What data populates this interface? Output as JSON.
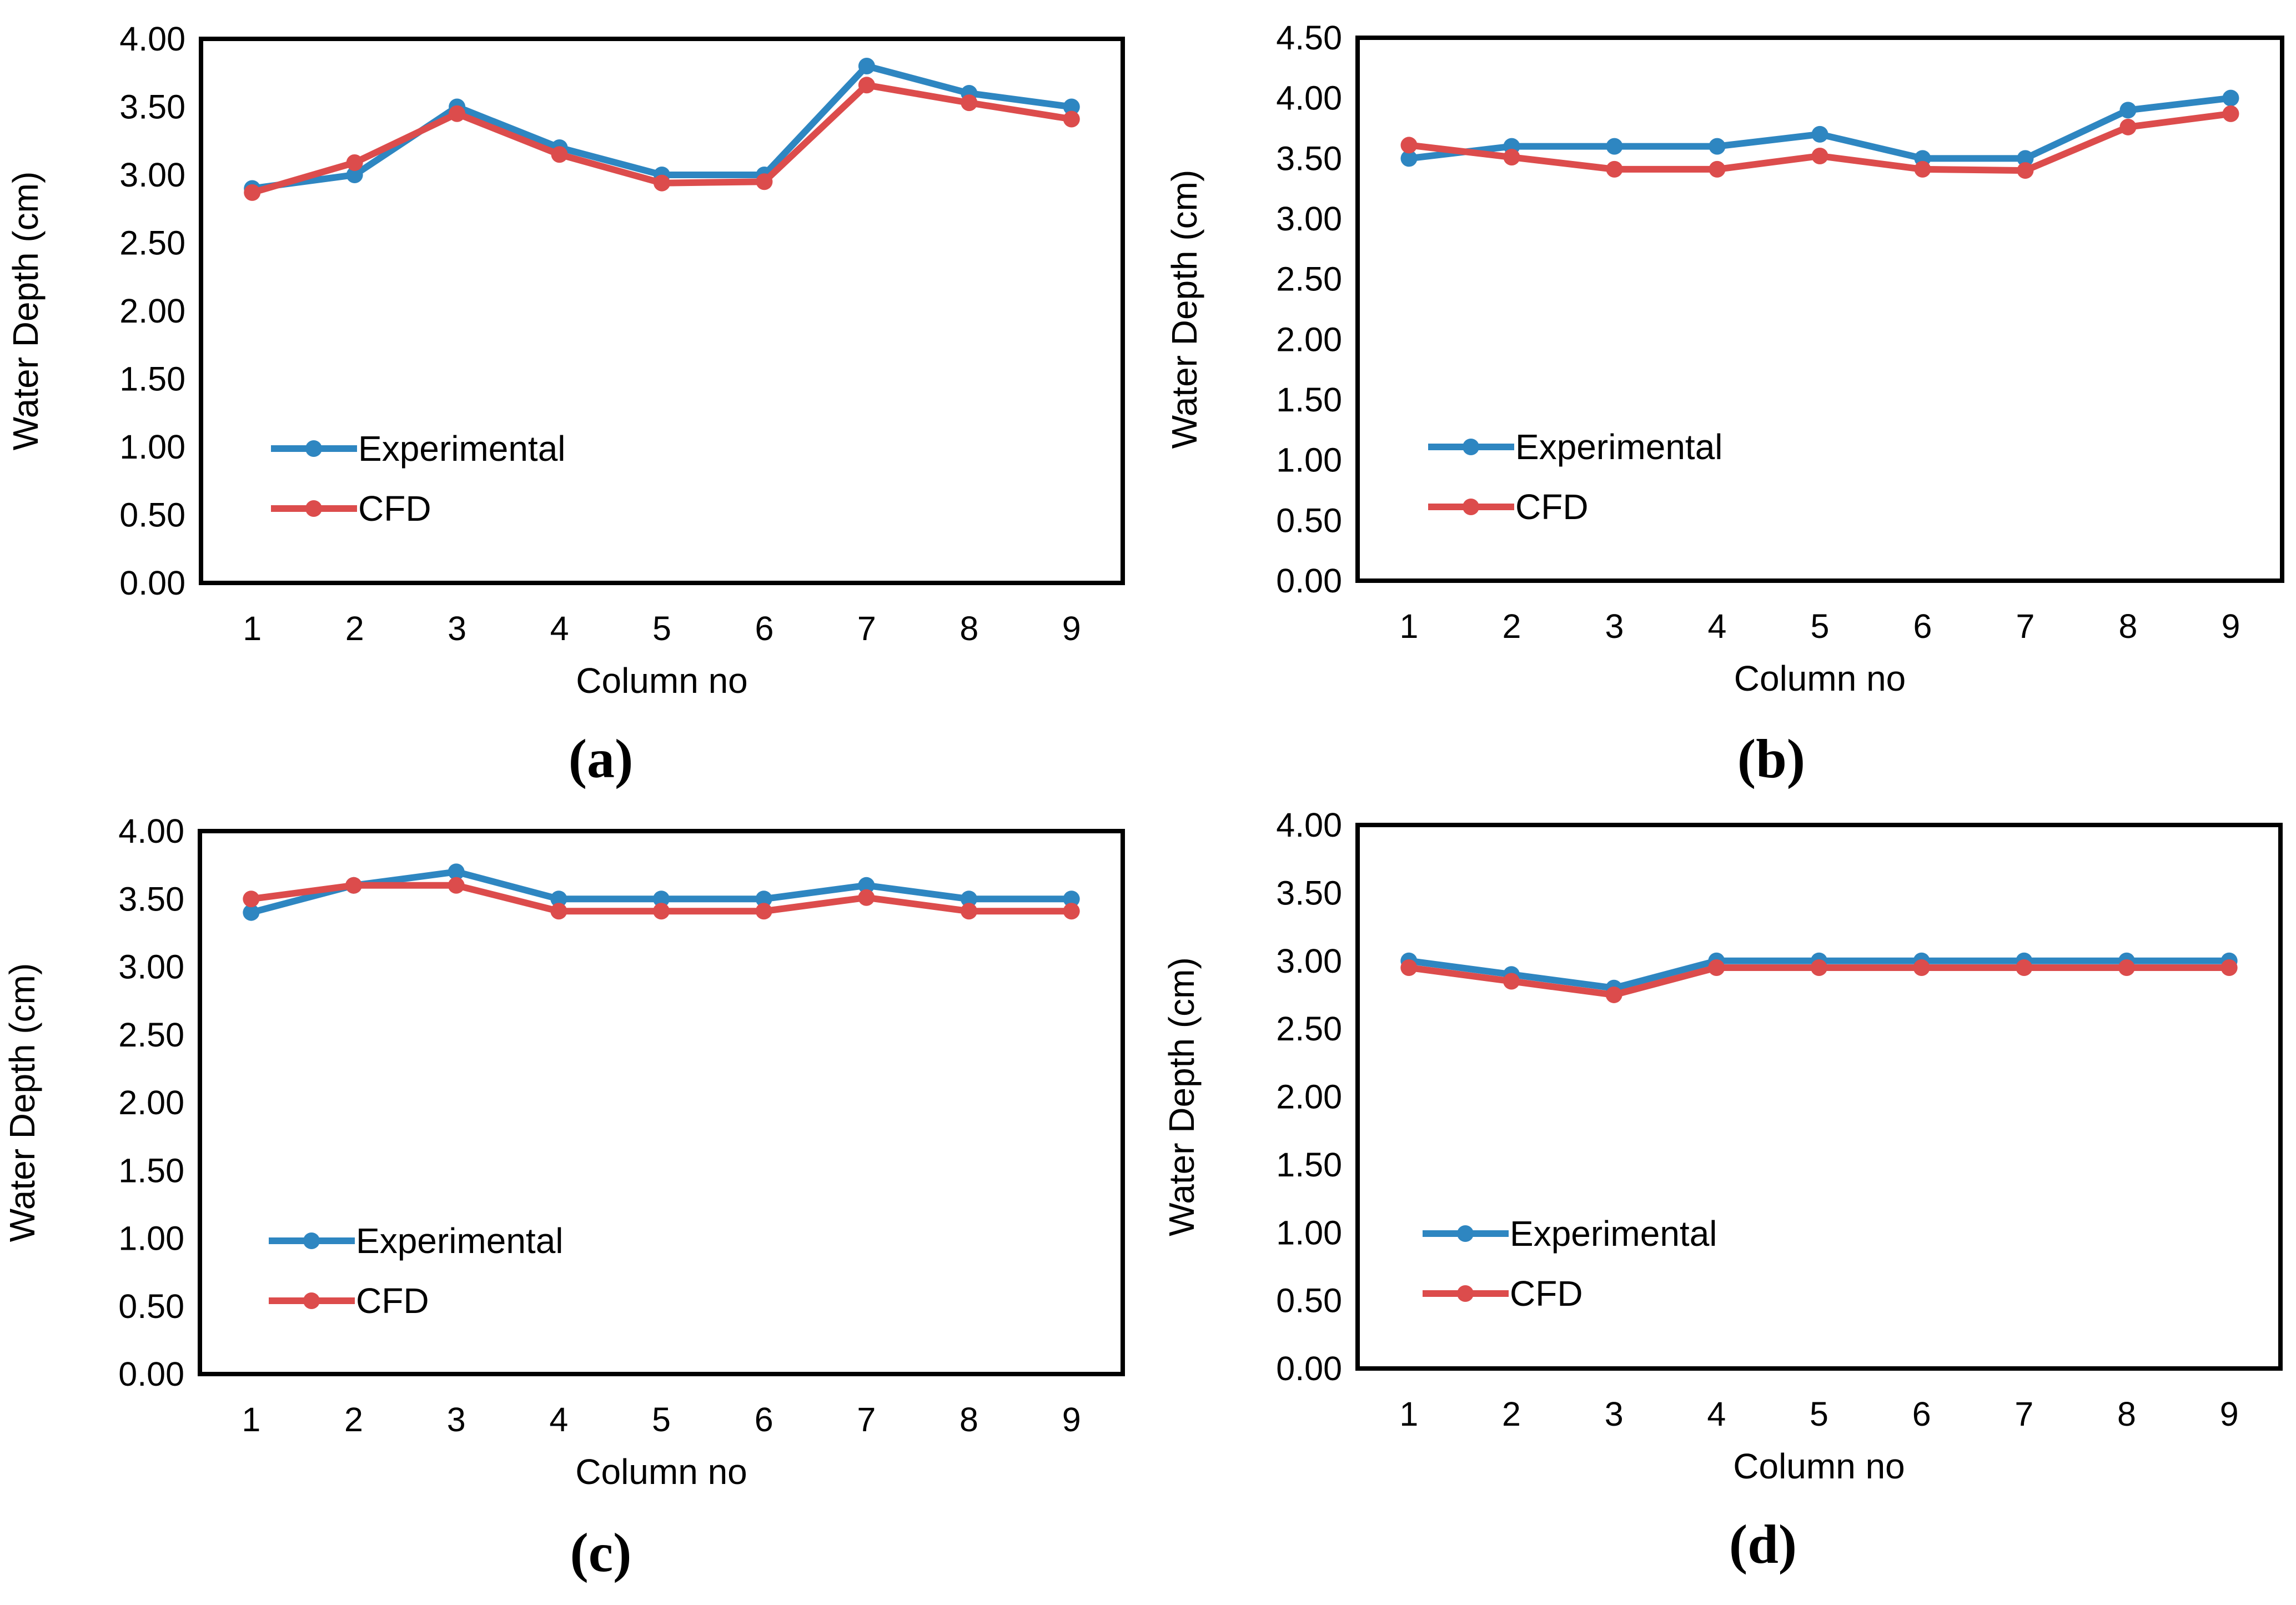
{
  "chart_data": [
    {
      "type": "line",
      "panel_label": "(a)",
      "categories": [
        "1",
        "2",
        "3",
        "4",
        "5",
        "6",
        "7",
        "8",
        "9"
      ],
      "xlabel": "Column no",
      "ylabel": "Water Depth (cm)",
      "ylim": [
        0,
        4
      ],
      "yticks": [
        "0.00",
        "0.50",
        "1.00",
        "1.50",
        "2.00",
        "2.50",
        "3.00",
        "3.50",
        "4.00"
      ],
      "series": [
        {
          "name": "Experimental",
          "color": "#2e86c1",
          "values": [
            2.9,
            3.0,
            3.5,
            3.2,
            3.0,
            3.0,
            3.8,
            3.6,
            3.5
          ]
        },
        {
          "name": "CFD",
          "color": "#dc4c4c",
          "values": [
            2.87,
            3.09,
            3.45,
            3.15,
            2.94,
            2.95,
            3.66,
            3.53,
            3.41
          ]
        }
      ],
      "legend": "left"
    },
    {
      "type": "line",
      "panel_label": "(b)",
      "categories": [
        "1",
        "2",
        "3",
        "4",
        "5",
        "6",
        "7",
        "8",
        "9"
      ],
      "xlabel": "Column no",
      "ylabel": "Water Depth (cm)",
      "ylim": [
        0,
        4.5
      ],
      "yticks": [
        "0.00",
        "0.50",
        "1.00",
        "1.50",
        "2.00",
        "2.50",
        "3.00",
        "3.50",
        "4.00",
        "4.50"
      ],
      "series": [
        {
          "name": "Experimental",
          "color": "#2e86c1",
          "values": [
            3.5,
            3.6,
            3.6,
            3.6,
            3.7,
            3.5,
            3.5,
            3.9,
            4.0
          ]
        },
        {
          "name": "CFD",
          "color": "#dc4c4c",
          "values": [
            3.61,
            3.51,
            3.41,
            3.41,
            3.52,
            3.41,
            3.4,
            3.76,
            3.87
          ]
        }
      ],
      "legend": "left"
    },
    {
      "type": "line",
      "panel_label": "(c)",
      "categories": [
        "1",
        "2",
        "3",
        "4",
        "5",
        "6",
        "7",
        "8",
        "9"
      ],
      "xlabel": "Column no",
      "ylabel": "Water Depth (cm)",
      "ylim": [
        0,
        4
      ],
      "yticks": [
        "0.00",
        "0.50",
        "1.00",
        "1.50",
        "2.00",
        "2.50",
        "3.00",
        "3.50",
        "4.00"
      ],
      "series": [
        {
          "name": "Experimental",
          "color": "#2e86c1",
          "values": [
            3.4,
            3.6,
            3.7,
            3.5,
            3.5,
            3.5,
            3.6,
            3.5,
            3.5
          ]
        },
        {
          "name": "CFD",
          "color": "#dc4c4c",
          "values": [
            3.5,
            3.6,
            3.6,
            3.41,
            3.41,
            3.41,
            3.51,
            3.41,
            3.41
          ]
        }
      ],
      "legend": "left"
    },
    {
      "type": "line",
      "panel_label": "(d)",
      "categories": [
        "1",
        "2",
        "3",
        "4",
        "5",
        "6",
        "7",
        "8",
        "9"
      ],
      "xlabel": "Column no",
      "ylabel": "Water Depth (cm)",
      "ylim": [
        0,
        4
      ],
      "yticks": [
        "0.00",
        "0.50",
        "1.00",
        "1.50",
        "2.00",
        "2.50",
        "3.00",
        "3.50",
        "4.00"
      ],
      "series": [
        {
          "name": "Experimental",
          "color": "#2e86c1",
          "values": [
            3.0,
            2.9,
            2.8,
            3.0,
            3.0,
            3.0,
            3.0,
            3.0,
            3.0
          ]
        },
        {
          "name": "CFD",
          "color": "#dc4c4c",
          "values": [
            2.95,
            2.85,
            2.75,
            2.95,
            2.95,
            2.95,
            2.95,
            2.95,
            2.95
          ]
        }
      ],
      "legend": "left"
    }
  ]
}
